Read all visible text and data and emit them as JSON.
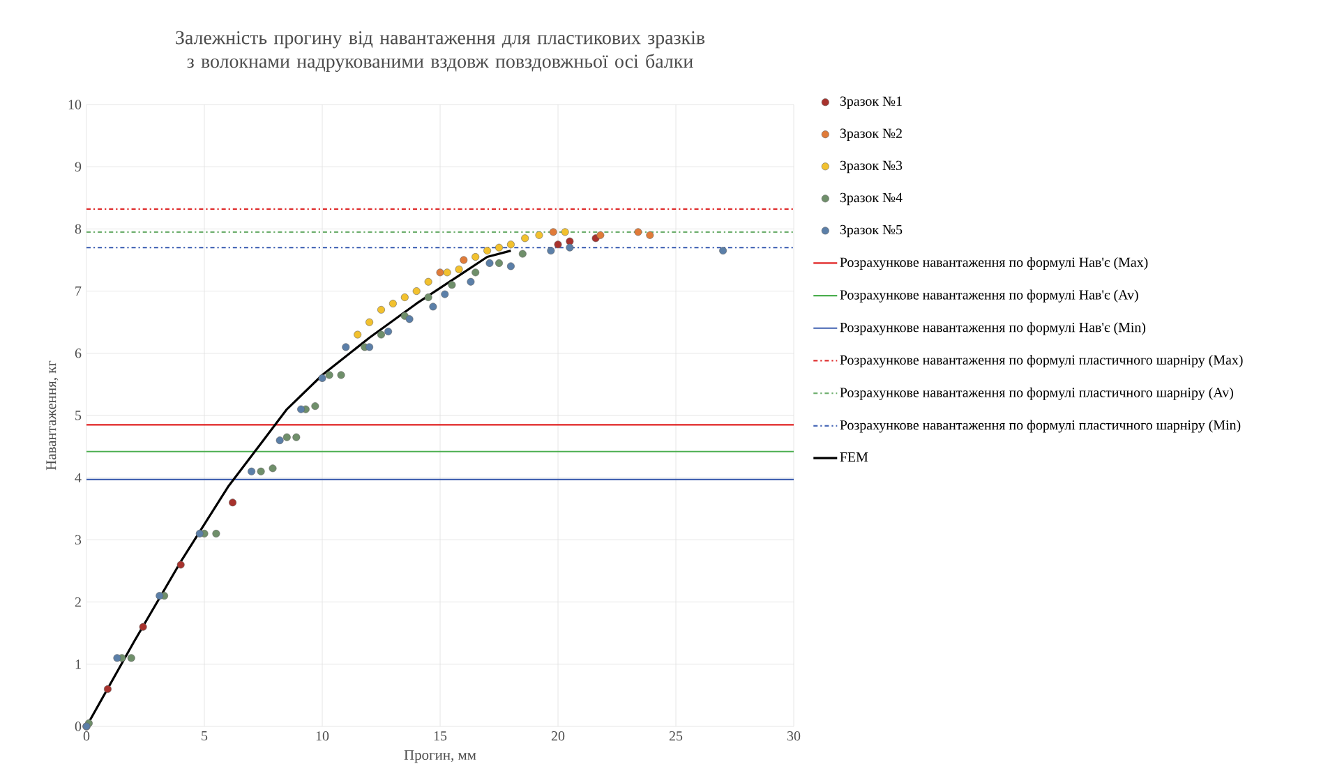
{
  "chart_data": {
    "type": "scatter",
    "title": "Залежність прогину від навантаження для пластикових зразків з волокнами надрукованими вздовж повздовжньої осі балки",
    "xlabel": "Прогин, мм",
    "ylabel": "Навантаження, кг",
    "xlim": [
      0,
      30
    ],
    "ylim": [
      0,
      10
    ],
    "xticks": [
      0,
      5,
      10,
      15,
      20,
      25,
      30
    ],
    "yticks": [
      0,
      1,
      2,
      3,
      4,
      5,
      6,
      7,
      8,
      9,
      10
    ],
    "grid": true,
    "legend": "right",
    "series": [
      {
        "name": "Зразок №1",
        "marker": "circle",
        "color": "#a8322d",
        "x": [
          0,
          0.9,
          2.4,
          4.0,
          6.2,
          20.0,
          20.5,
          21.6
        ],
        "values": [
          0,
          0.6,
          1.6,
          2.6,
          3.6,
          7.75,
          7.8,
          7.85
        ]
      },
      {
        "name": "Зразок №2",
        "marker": "circle",
        "color": "#e07b39",
        "x": [
          0,
          15.0,
          16.0,
          19.8,
          21.8,
          23.4,
          23.9
        ],
        "values": [
          0,
          7.3,
          7.5,
          7.95,
          7.9,
          7.95,
          7.9
        ]
      },
      {
        "name": "Зразок №3",
        "marker": "circle",
        "color": "#f2c12e",
        "x": [
          11.5,
          12.0,
          12.5,
          13.0,
          13.5,
          14.0,
          14.5,
          15.3,
          15.8,
          16.5,
          17.0,
          17.5,
          18.0,
          18.6,
          19.2,
          20.3
        ],
        "values": [
          6.3,
          6.5,
          6.7,
          6.8,
          6.9,
          7.0,
          7.15,
          7.3,
          7.35,
          7.55,
          7.65,
          7.7,
          7.75,
          7.85,
          7.9,
          7.95
        ]
      },
      {
        "name": "Зразок №4",
        "marker": "circle",
        "color": "#6f8f6a",
        "x": [
          0.1,
          1.5,
          1.9,
          3.3,
          5.0,
          5.5,
          7.4,
          7.9,
          8.5,
          8.9,
          9.3,
          9.7,
          10.3,
          10.8,
          11.8,
          12.5,
          13.5,
          14.5,
          15.5,
          16.5,
          17.5,
          18.5
        ],
        "values": [
          0.05,
          1.1,
          1.1,
          2.1,
          3.1,
          3.1,
          4.1,
          4.15,
          4.65,
          4.65,
          5.1,
          5.15,
          5.65,
          5.65,
          6.1,
          6.3,
          6.6,
          6.9,
          7.1,
          7.3,
          7.45,
          7.6
        ]
      },
      {
        "name": "Зразок №5",
        "marker": "circle",
        "color": "#5b7fa8",
        "x": [
          0,
          1.3,
          3.1,
          4.8,
          7.0,
          8.2,
          9.1,
          10.0,
          11.0,
          12.0,
          12.8,
          13.7,
          14.7,
          15.2,
          16.3,
          17.1,
          18.0,
          19.7,
          20.5,
          27.0
        ],
        "values": [
          0,
          1.1,
          2.1,
          3.1,
          4.1,
          4.6,
          5.1,
          5.6,
          6.1,
          6.1,
          6.35,
          6.55,
          6.75,
          6.95,
          7.15,
          7.45,
          7.4,
          7.65,
          7.7,
          7.65
        ]
      },
      {
        "name": "FEM",
        "type": "line",
        "marker": "none",
        "color": "#000000",
        "x": [
          0,
          2,
          4,
          6,
          7.5,
          8.5,
          10,
          12,
          14,
          16,
          17,
          18
        ],
        "values": [
          0,
          1.35,
          2.65,
          3.85,
          4.6,
          5.1,
          5.65,
          6.25,
          6.8,
          7.3,
          7.55,
          7.65
        ]
      }
    ],
    "ref_lines": [
      {
        "axis": "y",
        "value": 4.85,
        "label": "Розрахункове навантаження по формулі Нав'є (Max)",
        "color": "#e02020",
        "line_style": "solid"
      },
      {
        "axis": "y",
        "value": 4.42,
        "label": "Розрахункове навантаження по формулі Нав'є (Av)",
        "color": "#4caf50",
        "line_style": "solid"
      },
      {
        "axis": "y",
        "value": 3.97,
        "label": "Розрахункове навантаження по формулі Нав'є (Min)",
        "color": "#4060b0",
        "line_style": "solid"
      },
      {
        "axis": "y",
        "value": 8.32,
        "label": "Розрахункове навантаження по формулі пластичного шарніру (Max)",
        "color": "#e03030",
        "line_style": "dashdot"
      },
      {
        "axis": "y",
        "value": 7.95,
        "label": "Розрахункове навантаження по формулі пластичного шарніру (Av)",
        "color": "#70b070",
        "line_style": "dashdot"
      },
      {
        "axis": "y",
        "value": 7.7,
        "label": "Розрахункове навантаження по формулі пластичного шарніру (Min)",
        "color": "#4a6ab8",
        "line_style": "dashdot"
      }
    ]
  }
}
